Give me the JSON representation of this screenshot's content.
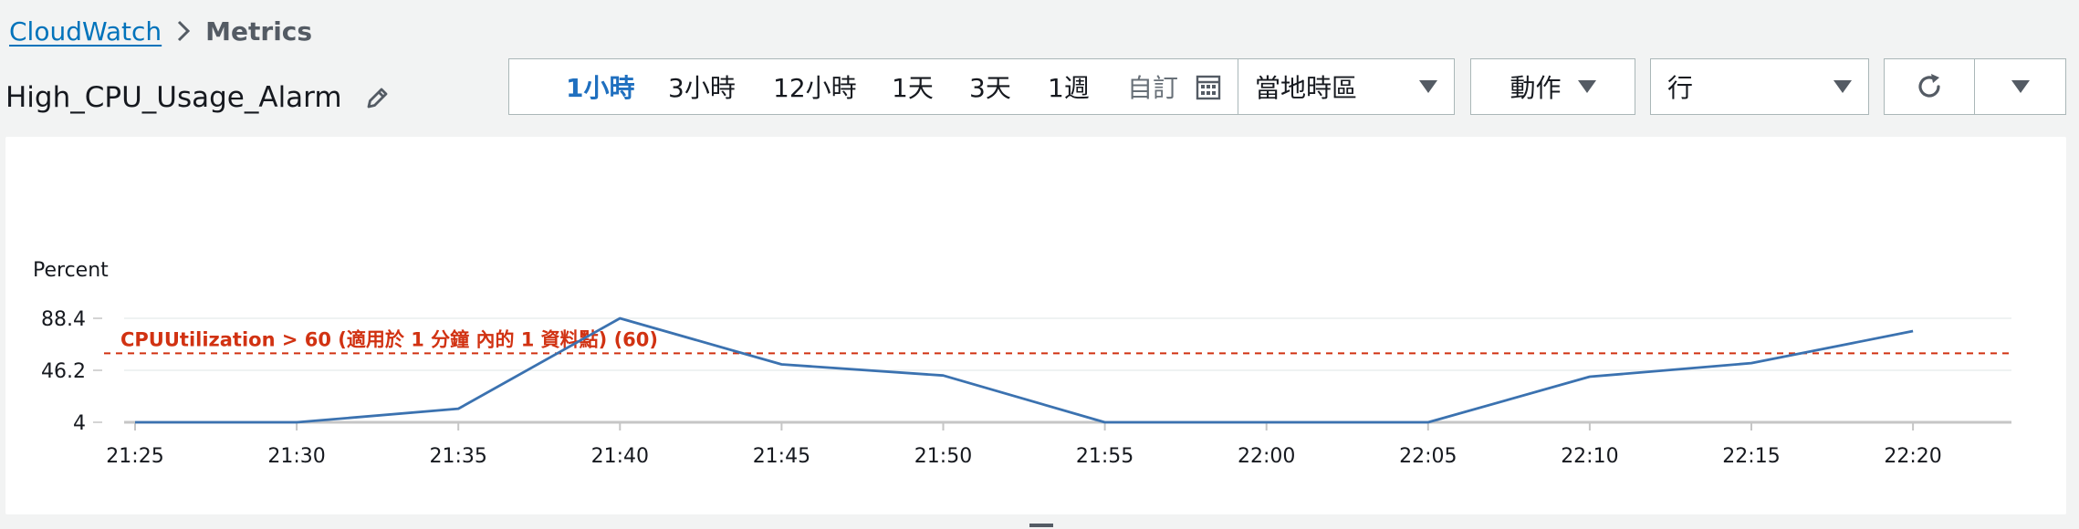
{
  "breadcrumb": {
    "root": "CloudWatch",
    "current": "Metrics"
  },
  "title": "High_CPU_Usage_Alarm",
  "time_ranges": [
    {
      "label": "1小時",
      "active": true
    },
    {
      "label": "3小時",
      "active": false
    },
    {
      "label": "12小時",
      "active": false
    },
    {
      "label": "1天",
      "active": false
    },
    {
      "label": "3天",
      "active": false
    },
    {
      "label": "1週",
      "active": false
    },
    {
      "label": "自訂",
      "active": false
    }
  ],
  "timezone_label": "當地時區",
  "actions_label": "動作",
  "view_label": "行",
  "icons": {
    "edit": "pencil-icon",
    "calendar": "calendar-icon",
    "refresh": "refresh-icon",
    "caret": "caret-down-icon"
  },
  "colors": {
    "link": "#0073bb",
    "active_range": "#1f6fbf",
    "series_line": "#3b72b0",
    "threshold": "#d13212"
  },
  "chart_data": {
    "type": "line",
    "ylabel": "Percent",
    "ylim": [
      4,
      88.4
    ],
    "yticks": [
      "88.4",
      "46.2",
      "4"
    ],
    "categories": [
      "21:25",
      "21:30",
      "21:35",
      "21:40",
      "21:45",
      "21:50",
      "21:55",
      "22:00",
      "22:05",
      "22:10",
      "22:15",
      "22:20"
    ],
    "series": [
      {
        "values": [
          4,
          4,
          15,
          88.4,
          51,
          42,
          4,
          4,
          4,
          41,
          52,
          78
        ]
      }
    ],
    "threshold": {
      "value": 60,
      "label": "CPUUtilization > 60 (適用於 1 分鐘 內的 1 資料點) (60)"
    },
    "grid": true
  }
}
